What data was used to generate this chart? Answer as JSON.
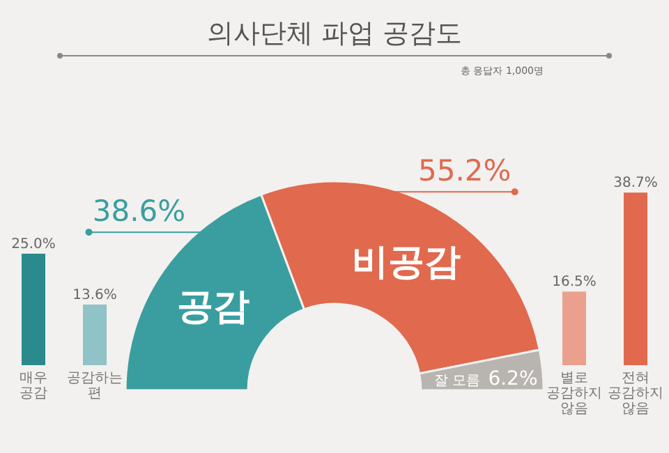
{
  "chart_data": [
    {
      "type": "donut",
      "title": "의사단체 파업 공감도",
      "subtitle": "총 응답자 1,000명",
      "categories": [
        "공감",
        "비공감",
        "잘 모름"
      ],
      "values": [
        38.6,
        55.2,
        6.2
      ],
      "colors": [
        "#3a9ea0",
        "#e0694e",
        "#b8b4b0"
      ],
      "value_labels": [
        "38.6%",
        "55.2%",
        "6.2%"
      ]
    },
    {
      "type": "bar",
      "categories": [
        "매우 공감",
        "공감하는 편"
      ],
      "values": [
        25.0,
        13.6
      ],
      "colors": [
        "#2a8a8c",
        "#8fc3c7"
      ],
      "value_labels": [
        "25.0%",
        "13.6%"
      ]
    },
    {
      "type": "bar",
      "categories": [
        "별로 공감하지 않음",
        "전혀 공감하지 않음"
      ],
      "values": [
        16.5,
        38.7
      ],
      "colors": [
        "#e9a08d",
        "#e0694e"
      ],
      "value_labels": [
        "16.5%",
        "38.7%"
      ]
    }
  ]
}
